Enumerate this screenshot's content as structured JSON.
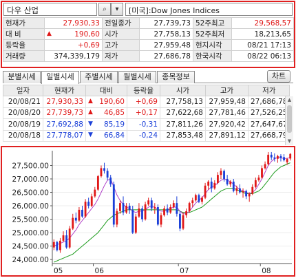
{
  "search": {
    "value": "다우 산업",
    "search_btn": "⌕",
    "dropdown_btn": "▾",
    "index_name": "[미국]:Dow Jones Indices"
  },
  "quote": {
    "rows": [
      [
        {
          "t": "현재가",
          "c": "lab"
        },
        {
          "t": "27,930,33",
          "c": "num red"
        },
        {
          "t": "전일종가",
          "c": "lab"
        },
        {
          "t": "27,739,73",
          "c": "num"
        },
        {
          "t": "52주최고",
          "c": "lab"
        },
        {
          "t": "29,568,57",
          "c": "num red"
        }
      ],
      [
        {
          "t": "대  비",
          "c": "lab"
        },
        {
          "t": "190,60",
          "c": "num red",
          "arrow": "▲"
        },
        {
          "t": "시가",
          "c": "lab"
        },
        {
          "t": "27,758,13",
          "c": "num"
        },
        {
          "t": "52주최저",
          "c": "lab"
        },
        {
          "t": "18,213,65",
          "c": "num"
        }
      ],
      [
        {
          "t": "등락율",
          "c": "lab"
        },
        {
          "t": "+0,69",
          "c": "num red"
        },
        {
          "t": "고가",
          "c": "lab"
        },
        {
          "t": "27,959,48",
          "c": "num"
        },
        {
          "t": "현지시각",
          "c": "lab"
        },
        {
          "t": "08/21 17:13",
          "c": "num"
        }
      ],
      [
        {
          "t": "거래량",
          "c": "lab"
        },
        {
          "t": "374,339,179",
          "c": "num"
        },
        {
          "t": "저가",
          "c": "lab"
        },
        {
          "t": "27,686,78",
          "c": "num"
        },
        {
          "t": "한국시각",
          "c": "lab"
        },
        {
          "t": "08/22 06:13",
          "c": "num"
        }
      ]
    ]
  },
  "tabs": [
    {
      "label": "분별시세",
      "active": false
    },
    {
      "label": "일별시세",
      "active": true
    },
    {
      "label": "주별시세",
      "active": false
    },
    {
      "label": "월별시세",
      "active": false
    },
    {
      "label": "종목정보",
      "active": false
    }
  ],
  "chart_button": "차트",
  "daily": {
    "headers": [
      "일자",
      "현재가",
      "대비",
      "등락율",
      "시가",
      "고가",
      "저가"
    ],
    "rows": [
      {
        "date": "20/08/21",
        "close": "27,930,33",
        "close_color": "red",
        "arrow": "▲",
        "change": "190,60",
        "change_color": "red",
        "rate": "+0,69",
        "rate_color": "red",
        "open": "27,758,13",
        "high": "27,959,48",
        "low": "27,686,78"
      },
      {
        "date": "20/08/20",
        "close": "27,739,73",
        "close_color": "red",
        "arrow": "▲",
        "change": "46,85",
        "change_color": "red",
        "rate": "+0,17",
        "rate_color": "red",
        "open": "27,622,68",
        "high": "27,781,46",
        "low": "27,526,25"
      },
      {
        "date": "20/08/19",
        "close": "27,692,88",
        "close_color": "blue",
        "arrow": "▼",
        "change": "85,19",
        "change_color": "blue",
        "rate": "-0,31",
        "rate_color": "blue",
        "open": "27,811,26",
        "high": "27,920,42",
        "low": "27,647,67"
      },
      {
        "date": "20/08/18",
        "close": "27,778,07",
        "close_color": "blue",
        "arrow": "▼",
        "change": "66,84",
        "change_color": "blue",
        "rate": "-0,24",
        "rate_color": "blue",
        "open": "27,853,48",
        "high": "27,891,12",
        "low": "27,668,79"
      }
    ]
  },
  "chart_data": {
    "type": "candlestick",
    "yticks": [
      "27,500.00",
      "27,000.00",
      "26,500.00",
      "26,000.00",
      "25,500.00",
      "25,000.00",
      "24,500.00",
      "24,000.00"
    ],
    "ytick_values": [
      27500,
      27000,
      26500,
      26000,
      25500,
      25000,
      24500,
      24000
    ],
    "ylim": [
      23850,
      28050
    ],
    "xticks": [
      {
        "label": "05",
        "index": 0
      },
      {
        "label": "06",
        "index": 13
      },
      {
        "label": "07",
        "index": 40
      },
      {
        "label": "08",
        "index": 66
      }
    ],
    "colors": {
      "up": "#e01818",
      "down": "#1a3fd8",
      "ma_short": "#b040c8",
      "ma_long": "#1a9a1a"
    },
    "series": [
      {
        "name": "candles",
        "values": [
          [
            24450,
            24750,
            24350,
            24650
          ],
          [
            24650,
            24700,
            24300,
            24350
          ],
          [
            24350,
            24800,
            24250,
            24700
          ],
          [
            24700,
            25050,
            24650,
            24900
          ],
          [
            24900,
            25100,
            24400,
            24450
          ],
          [
            24450,
            25250,
            24400,
            25150
          ],
          [
            25150,
            25700,
            25100,
            25550
          ],
          [
            25550,
            25750,
            25350,
            25450
          ],
          [
            25450,
            25950,
            25400,
            25850
          ],
          [
            25850,
            26000,
            25550,
            25600
          ],
          [
            25600,
            26250,
            25550,
            26150
          ],
          [
            26150,
            26300,
            25900,
            26000
          ],
          [
            26000,
            26450,
            25950,
            26350
          ],
          [
            26350,
            26700,
            26300,
            26600
          ],
          [
            26600,
            27150,
            26550,
            27100
          ],
          [
            27100,
            27500,
            27050,
            27400
          ],
          [
            27400,
            27600,
            27200,
            27300
          ],
          [
            27300,
            27400,
            26950,
            27050
          ],
          [
            27050,
            27150,
            26700,
            26800
          ],
          [
            26800,
            26900,
            25200,
            25300
          ],
          [
            25300,
            25900,
            25200,
            25800
          ],
          [
            25800,
            26200,
            25700,
            26100
          ],
          [
            26100,
            26350,
            25650,
            25750
          ],
          [
            25750,
            26100,
            25700,
            26000
          ],
          [
            26000,
            26100,
            25700,
            25850
          ],
          [
            25850,
            26000,
            24950,
            25000
          ],
          [
            25000,
            25700,
            24950,
            25600
          ],
          [
            25600,
            26100,
            25550,
            25900
          ],
          [
            25900,
            26000,
            25400,
            25500
          ],
          [
            25500,
            26150,
            25450,
            26050
          ],
          [
            26050,
            26300,
            26000,
            26200
          ],
          [
            26200,
            26300,
            25800,
            25900
          ],
          [
            25900,
            26100,
            25700,
            25950
          ],
          [
            25950,
            26050,
            25250,
            25300
          ],
          [
            25300,
            25750,
            25200,
            25650
          ],
          [
            25650,
            26000,
            25600,
            25900
          ],
          [
            25900,
            26050,
            25650,
            25750
          ],
          [
            25750,
            26050,
            25700,
            25950
          ],
          [
            25950,
            26200,
            25900,
            26100
          ],
          [
            26100,
            26350,
            25600,
            25700
          ],
          [
            25700,
            25800,
            25050,
            25150
          ],
          [
            25150,
            25750,
            25100,
            25650
          ],
          [
            25650,
            25900,
            25550,
            25800
          ],
          [
            25800,
            26150,
            25750,
            26100
          ],
          [
            26100,
            26300,
            25950,
            26200
          ],
          [
            26200,
            26450,
            26150,
            26400
          ],
          [
            26400,
            26450,
            26100,
            26150
          ],
          [
            26150,
            26350,
            26050,
            26300
          ],
          [
            26300,
            26850,
            26250,
            26750
          ],
          [
            26750,
            26950,
            26600,
            26900
          ],
          [
            26900,
            27050,
            26500,
            26650
          ],
          [
            26650,
            26950,
            26600,
            26850
          ],
          [
            26850,
            27250,
            26800,
            27150
          ],
          [
            27150,
            27400,
            27000,
            27300
          ],
          [
            27300,
            27350,
            26900,
            27000
          ],
          [
            27000,
            27150,
            26750,
            26800
          ],
          [
            26800,
            26950,
            26700,
            26900
          ],
          [
            26900,
            27000,
            26500,
            26550
          ],
          [
            26550,
            26750,
            26400,
            26650
          ],
          [
            26650,
            26800,
            26450,
            26500
          ],
          [
            26500,
            26650,
            26300,
            26550
          ],
          [
            26550,
            26600,
            26250,
            26350
          ],
          [
            26350,
            26500,
            26150,
            26450
          ],
          [
            26450,
            26800,
            26400,
            26700
          ],
          [
            26700,
            27050,
            26650,
            26950
          ],
          [
            26950,
            27150,
            26900,
            27050
          ],
          [
            27050,
            27500,
            27000,
            27400
          ],
          [
            27400,
            27650,
            27350,
            27550
          ],
          [
            27550,
            28000,
            27500,
            27900
          ],
          [
            27900,
            28000,
            27700,
            27800
          ],
          [
            27800,
            27950,
            27650,
            27750
          ],
          [
            27750,
            27900,
            27600,
            27850
          ],
          [
            27850,
            27920,
            27650,
            27778
          ],
          [
            27811,
            27920,
            27648,
            27693
          ],
          [
            27623,
            27781,
            27526,
            27740
          ],
          [
            27758,
            27959,
            27687,
            27930
          ]
        ]
      },
      {
        "name": "ma_short",
        "values": [
          24500,
          24550,
          24600,
          24650,
          24700,
          24800,
          24950,
          25100,
          25300,
          25450,
          25600,
          25750,
          25900,
          26050,
          26250,
          26500,
          26750,
          26950,
          27000,
          26700,
          26400,
          26200,
          26050,
          25950,
          25900,
          25800,
          25750,
          25800,
          25800,
          25850,
          25950,
          26000,
          25950,
          25850,
          25800,
          25800,
          25850,
          25900,
          25950,
          25950,
          25800,
          25700,
          25700,
          25800,
          25950,
          26100,
          26200,
          26300,
          26450,
          26600,
          26700,
          26750,
          26850,
          26950,
          27000,
          26950,
          26900,
          26800,
          26700,
          26600,
          26550,
          26500,
          26450,
          26500,
          26600,
          26800,
          27000,
          27250,
          27500,
          27650,
          27750,
          27800,
          27780,
          27760,
          27760,
          27800
        ]
      },
      {
        "name": "ma_long",
        "values": [
          23900,
          23950,
          24000,
          24050,
          24100,
          24150,
          24200,
          24300,
          24400,
          24500,
          24600,
          24700,
          24800,
          24900,
          25000,
          25150,
          25300,
          25450,
          25550,
          25650,
          25700,
          25750,
          25800,
          25850,
          25850,
          25850,
          25850,
          25850,
          25850,
          25850,
          25850,
          25850,
          25850,
          25850,
          25850,
          25850,
          25850,
          25850,
          25850,
          25850,
          25800,
          25750,
          25750,
          25750,
          25800,
          25850,
          25900,
          25950,
          26050,
          26150,
          26250,
          26350,
          26450,
          26550,
          26600,
          26650,
          26650,
          26650,
          26600,
          26550,
          26500,
          26450,
          26450,
          26450,
          26500,
          26550,
          26650,
          26800,
          26950,
          27100,
          27250,
          27350,
          27450,
          27500,
          27550,
          27600
        ]
      }
    ]
  }
}
